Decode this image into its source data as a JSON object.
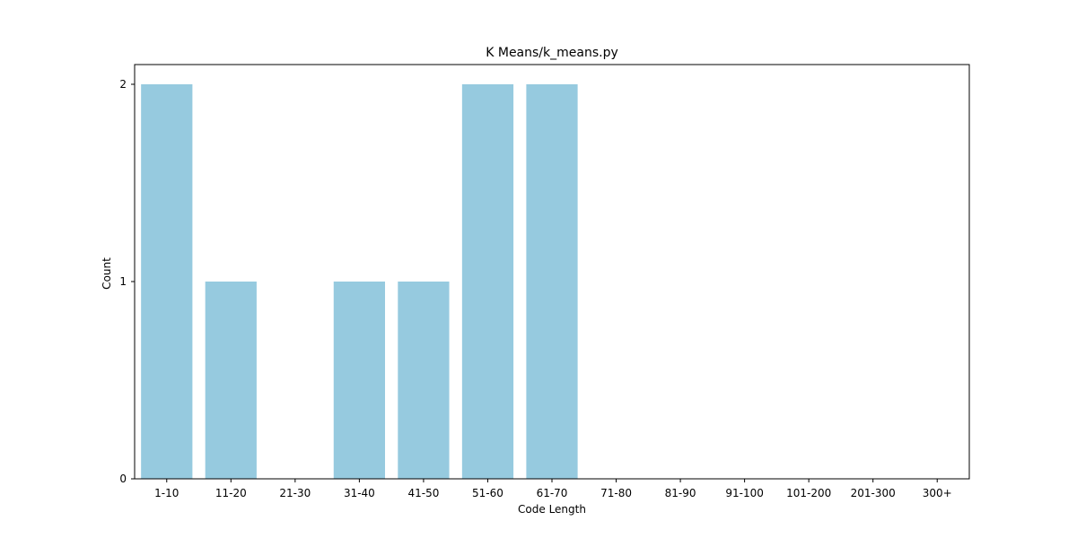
{
  "chart_data": {
    "type": "bar",
    "title": "K Means/k_means.py",
    "xlabel": "Code Length",
    "ylabel": "Count",
    "categories": [
      "1-10",
      "11-20",
      "21-30",
      "31-40",
      "41-50",
      "51-60",
      "61-70",
      "71-80",
      "81-90",
      "91-100",
      "101-200",
      "201-300",
      "300+"
    ],
    "values": [
      2,
      1,
      0,
      1,
      1,
      2,
      2,
      0,
      0,
      0,
      0,
      0,
      0
    ],
    "ylim": [
      0,
      2.1
    ],
    "yticks": [
      0,
      1,
      2
    ],
    "bar_color": "#96cadf",
    "grid": false,
    "legend": "none"
  }
}
